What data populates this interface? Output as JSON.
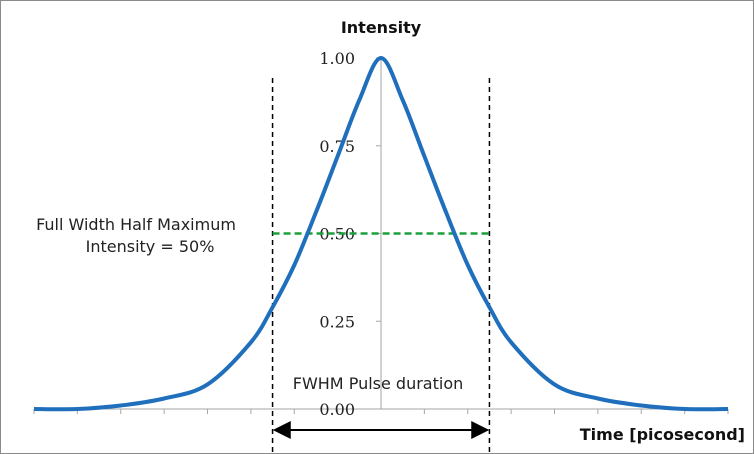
{
  "chart_data": {
    "type": "line",
    "title": "",
    "ylabel": "Intensity",
    "xlabel": "Time [picosecond]",
    "ylim": [
      0,
      1
    ],
    "xlim": [
      -4,
      4
    ],
    "y_ticks": [
      {
        "value": 0,
        "label": "0.00"
      },
      {
        "value": 0.25,
        "label": "0.25"
      },
      {
        "value": 0.5,
        "label": "0.50"
      },
      {
        "value": 0.75,
        "label": "0.75"
      },
      {
        "value": 1,
        "label": "1.00"
      }
    ],
    "x_tick_values": [
      -4,
      -3.5,
      -3,
      -2.5,
      -2,
      -1.5,
      -1,
      -0.5,
      0.5,
      1,
      1.5,
      2,
      2.5,
      3,
      3.5,
      4
    ],
    "grid": false,
    "series": [
      {
        "color": "#1f6fbd",
        "x": [
          -4,
          -3.5,
          -3,
          -2.5,
          -2,
          -1.5,
          -1.25,
          -1,
          -0.75,
          -0.5,
          -0.25,
          0,
          0.25,
          0.5,
          0.75,
          1,
          1.25,
          1.5,
          2,
          2.5,
          3,
          3.5,
          4
        ],
        "y": [
          0.0,
          0.0,
          0.01,
          0.03,
          0.07,
          0.19,
          0.29,
          0.41,
          0.56,
          0.72,
          0.88,
          1.0,
          0.88,
          0.72,
          0.56,
          0.41,
          0.29,
          0.19,
          0.07,
          0.03,
          0.01,
          0.0,
          0.0
        ]
      }
    ],
    "annotations": {
      "fwhm_line": {
        "y": 0.5,
        "x_from": -1.25,
        "x_to": 1.25,
        "color": "#1aa13a",
        "style": "dashed"
      },
      "vertical_markers": [
        {
          "x": -1.25
        },
        {
          "x": 1.25
        }
      ],
      "duration_arrow": {
        "x_from": -1.25,
        "x_to": 1.25
      },
      "text_left_line1": "Full Width Half Maximum",
      "text_left_line2": "Intensity = 50%",
      "text_pulse": "FWHM  Pulse duration"
    }
  }
}
